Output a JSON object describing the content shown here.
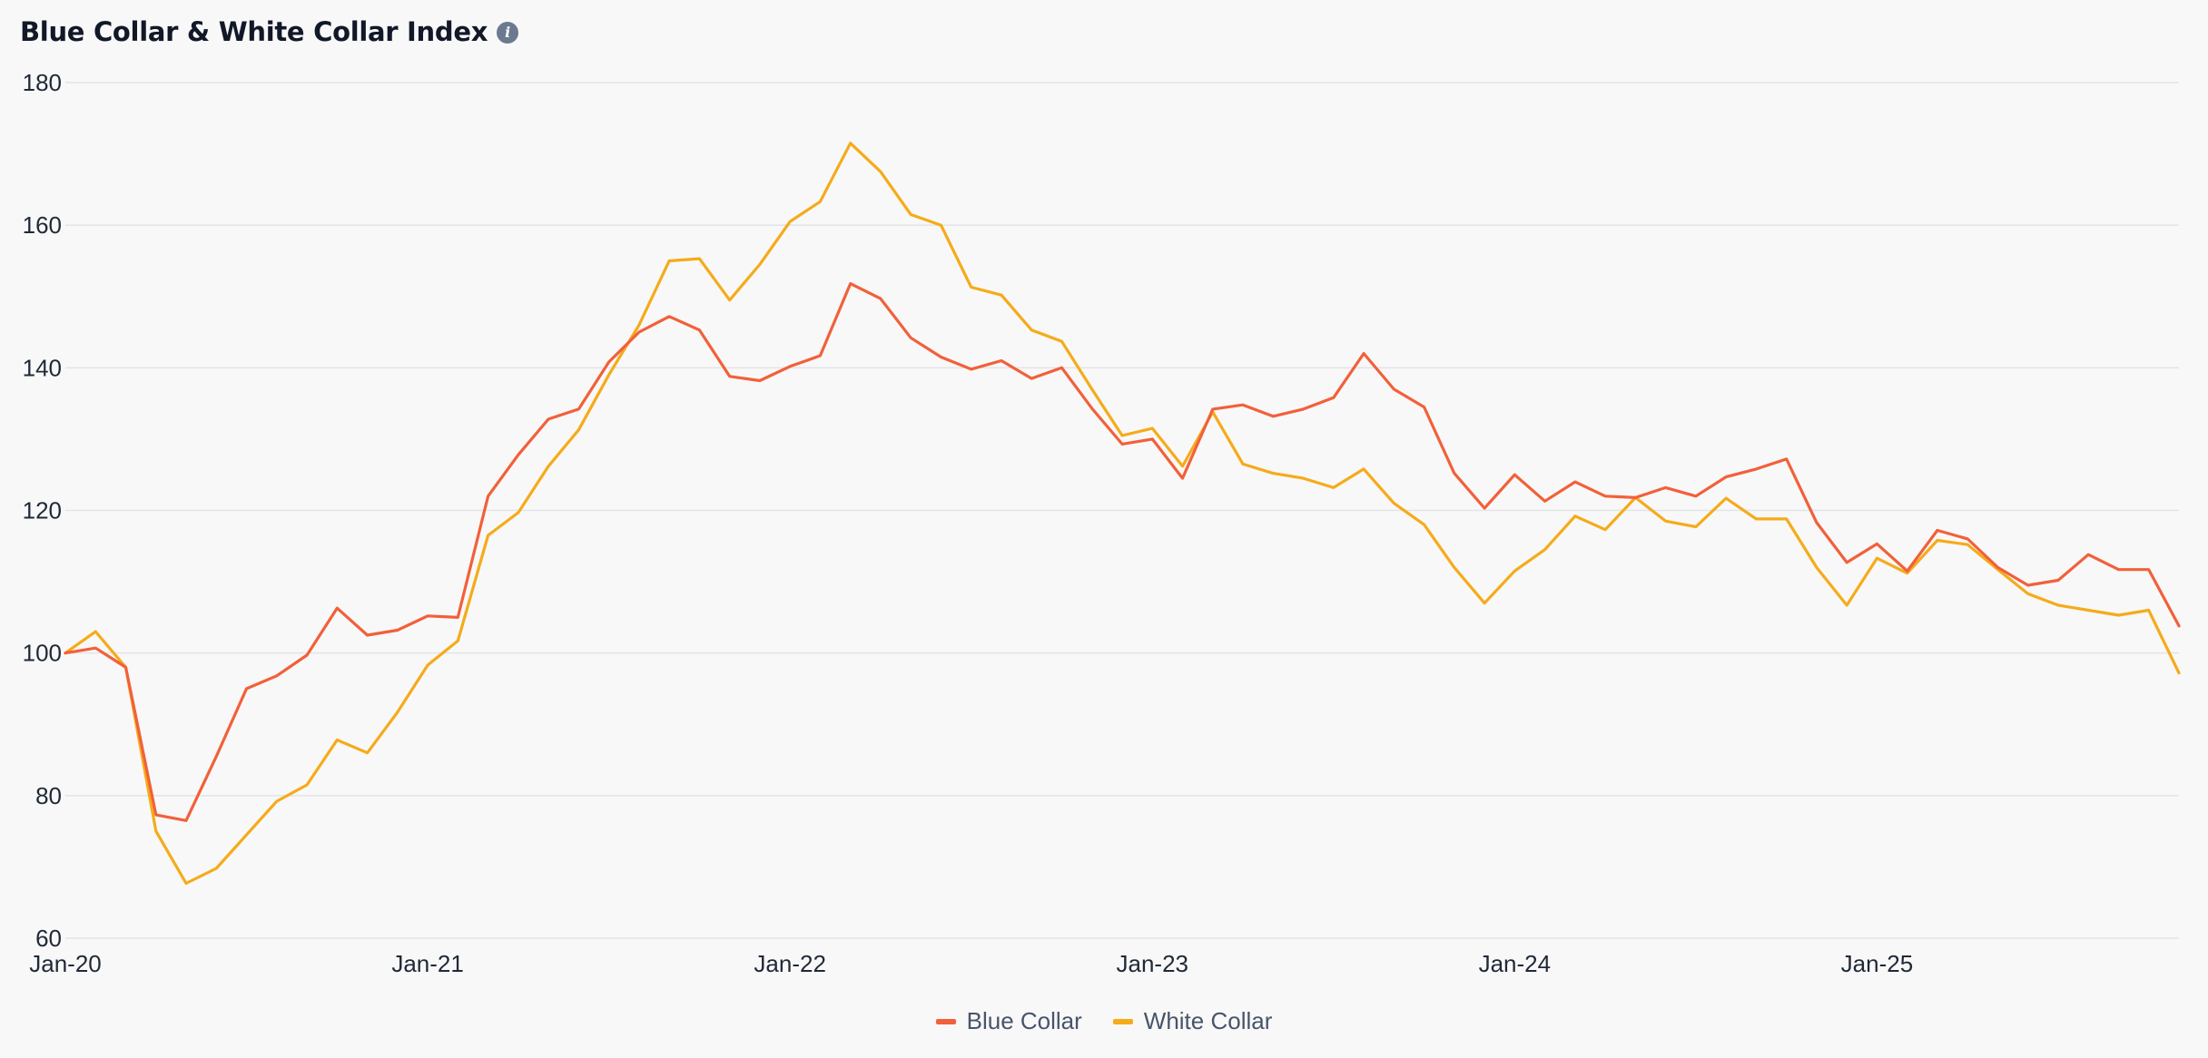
{
  "header": {
    "title": "Blue Collar & White Collar Index",
    "info_icon": "info-icon"
  },
  "colors": {
    "blue_collar": "#f2603a",
    "white_collar": "#f5ab1a",
    "grid": "#e2e4e8",
    "tick_text": "#1f2937"
  },
  "legend": {
    "items": [
      {
        "label": "Blue Collar",
        "color": "#f2603a"
      },
      {
        "label": "White Collar",
        "color": "#f5ab1a"
      }
    ]
  },
  "chart_data": {
    "type": "line",
    "title": "Blue Collar & White Collar Index",
    "xlabel": "",
    "ylabel": "",
    "ylim": [
      60,
      180
    ],
    "yticks": [
      60,
      80,
      100,
      120,
      140,
      160,
      180
    ],
    "xticks": [
      "Jan-20",
      "Jan-21",
      "Jan-22",
      "Jan-23",
      "Jan-24",
      "Jan-25"
    ],
    "x_start": "Jan-20",
    "x_end": "Dec-25",
    "grid": true,
    "legend_position": "bottom",
    "series": [
      {
        "name": "Blue Collar",
        "color": "#f2603a",
        "values": [
          100,
          100.7,
          98,
          77.3,
          76.5,
          85.5,
          95,
          96.8,
          99.7,
          106.3,
          102.5,
          103.2,
          105.2,
          105,
          122,
          127.8,
          132.8,
          134.2,
          140.8,
          145,
          147.2,
          145.3,
          138.8,
          138.2,
          140.2,
          141.7,
          151.8,
          149.7,
          144.2,
          141.5,
          139.8,
          141,
          138.5,
          140,
          134.3,
          129.3,
          130,
          124.5,
          134.2,
          134.8,
          133.2,
          134.2,
          135.8,
          142,
          137,
          134.5,
          125.2,
          120.3,
          125,
          121.3,
          124,
          122,
          121.8,
          123.2,
          122,
          124.7,
          125.8,
          127.2,
          118.3,
          112.7,
          115.3,
          111.5,
          117.2,
          116,
          112,
          109.5,
          110.2,
          113.8,
          111.7,
          111.7,
          103.8
        ]
      },
      {
        "name": "White Collar",
        "color": "#f5ab1a",
        "values": [
          100,
          103,
          98,
          75,
          67.7,
          69.8,
          74.5,
          79.2,
          81.5,
          87.8,
          86,
          91.7,
          98.3,
          101.7,
          116.5,
          119.7,
          126.2,
          131.3,
          139,
          146,
          155,
          155.3,
          149.5,
          154.5,
          160.5,
          163.3,
          171.5,
          167.5,
          161.5,
          160,
          151.3,
          150.2,
          145.3,
          143.7,
          137,
          130.5,
          131.5,
          126.2,
          133.8,
          126.5,
          125.2,
          124.5,
          123.2,
          125.8,
          121,
          118,
          112,
          107,
          111.5,
          114.5,
          119.2,
          117.3,
          121.8,
          118.5,
          117.7,
          121.7,
          118.8,
          118.8,
          112,
          106.7,
          113.3,
          111.2,
          115.8,
          115.2,
          111.7,
          108.3,
          106.7,
          106,
          105.3,
          106,
          97.2
        ]
      }
    ]
  }
}
